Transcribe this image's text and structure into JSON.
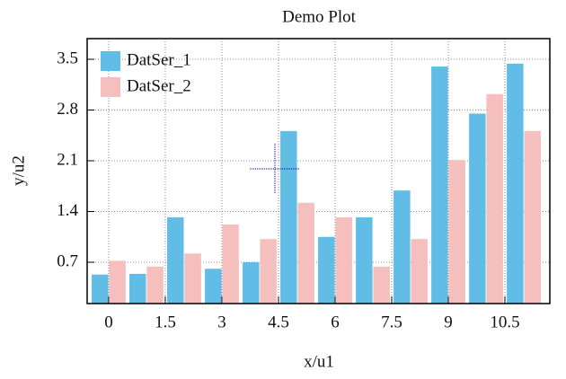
{
  "chart_data": {
    "type": "bar",
    "title": "Demo Plot",
    "x_label": "x/u1",
    "y_label": "y/u2",
    "x": [
      0,
      1,
      2,
      3,
      4,
      5,
      6,
      7,
      8,
      9,
      10,
      11
    ],
    "series": [
      {
        "name": "DatSer_1",
        "color": "#62bde6",
        "values": [
          0.53,
          0.54,
          1.32,
          0.61,
          0.7,
          2.51,
          1.05,
          1.32,
          1.69,
          3.4,
          2.75,
          3.44
        ]
      },
      {
        "name": "DatSer_2",
        "color": "#f5bfbd",
        "values": [
          0.72,
          0.64,
          0.82,
          1.22,
          1.02,
          1.52,
          1.32,
          0.64,
          1.02,
          2.11,
          3.02,
          2.51
        ]
      }
    ],
    "xlim": [
      -0.57,
      11.69
    ],
    "xticks": [
      0,
      1.5,
      3,
      4.5,
      6,
      7.5,
      9,
      10.5
    ],
    "ylim": [
      0.13,
      3.785
    ],
    "yticks": [
      0.7,
      1.4,
      2.1,
      2.8,
      3.5
    ],
    "grid": true,
    "legend": "upper-left"
  }
}
